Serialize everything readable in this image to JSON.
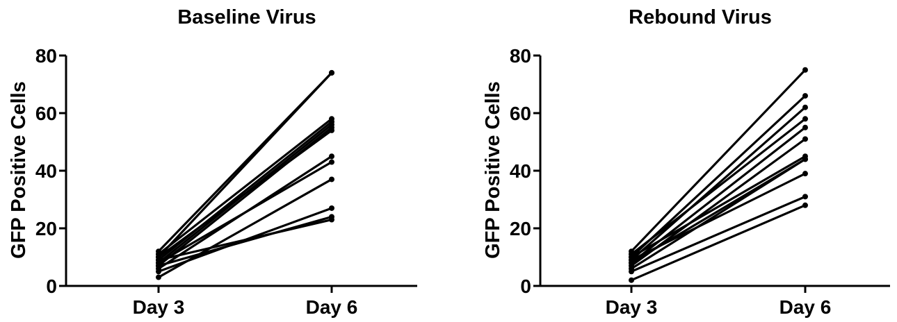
{
  "chart_data": [
    {
      "type": "line",
      "title": "Baseline Virus",
      "xlabel": "",
      "ylabel": "GFP Positive Cells",
      "categories": [
        "Day 3",
        "Day 6"
      ],
      "ylim": [
        0,
        80
      ],
      "yticks": [
        0,
        20,
        40,
        60,
        80
      ],
      "grid": false,
      "legend": "none",
      "series": [
        {
          "values": [
            12,
            74
          ]
        },
        {
          "values": [
            10,
            74
          ]
        },
        {
          "values": [
            11,
            58
          ]
        },
        {
          "values": [
            9,
            57
          ]
        },
        {
          "values": [
            8,
            56
          ]
        },
        {
          "values": [
            7,
            55
          ]
        },
        {
          "values": [
            10,
            54
          ]
        },
        {
          "values": [
            6,
            45
          ]
        },
        {
          "values": [
            8,
            43
          ]
        },
        {
          "values": [
            3,
            37
          ]
        },
        {
          "values": [
            5,
            27
          ]
        },
        {
          "values": [
            7,
            24
          ]
        },
        {
          "values": [
            9,
            23
          ]
        }
      ]
    },
    {
      "type": "line",
      "title": "Rebound Virus",
      "xlabel": "",
      "ylabel": "GFP Positive Cells",
      "categories": [
        "Day 3",
        "Day 6"
      ],
      "ylim": [
        0,
        80
      ],
      "yticks": [
        0,
        20,
        40,
        60,
        80
      ],
      "grid": false,
      "legend": "none",
      "series": [
        {
          "values": [
            12,
            75
          ]
        },
        {
          "values": [
            10,
            66
          ]
        },
        {
          "values": [
            9,
            62
          ]
        },
        {
          "values": [
            11,
            58
          ]
        },
        {
          "values": [
            8,
            55
          ]
        },
        {
          "values": [
            7,
            51
          ]
        },
        {
          "values": [
            10,
            45
          ]
        },
        {
          "values": [
            6,
            44
          ]
        },
        {
          "values": [
            9,
            39
          ]
        },
        {
          "values": [
            5,
            31
          ]
        },
        {
          "values": [
            2,
            28
          ]
        },
        {
          "values": [
            8,
            44
          ]
        }
      ]
    }
  ]
}
